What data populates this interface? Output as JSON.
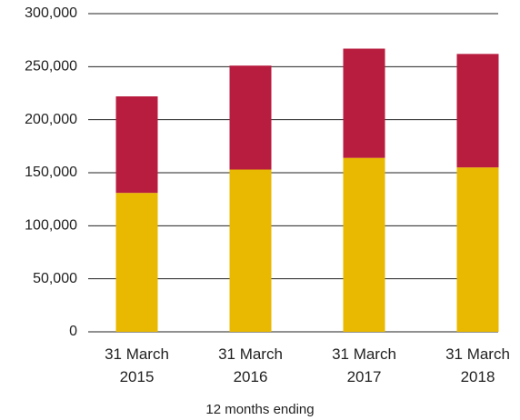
{
  "chart_data": {
    "type": "stacked_bar",
    "x_label": "12 months ending",
    "categories": [
      "31 March 2015",
      "31 March 2016",
      "31 March 2017",
      "31 March 2018"
    ],
    "series": [
      {
        "color": "#e8b900",
        "values": [
          131000,
          153000,
          164000,
          155000
        ]
      },
      {
        "color": "#b81c3f",
        "values": [
          91000,
          98000,
          103000,
          107000
        ]
      }
    ],
    "ylim": [
      0,
      300000
    ],
    "yticks": [
      0,
      {
        "value": 50000,
        "label": "50,000"
      },
      {
        "value": 100000,
        "label": "100,000"
      },
      {
        "value": 150000,
        "label": "150,000"
      },
      {
        "value": 200000,
        "label": "200,000"
      },
      {
        "value": 250000,
        "label": "250,000"
      },
      {
        "value": 300000,
        "label": "300,000"
      }
    ],
    "grid": true
  }
}
